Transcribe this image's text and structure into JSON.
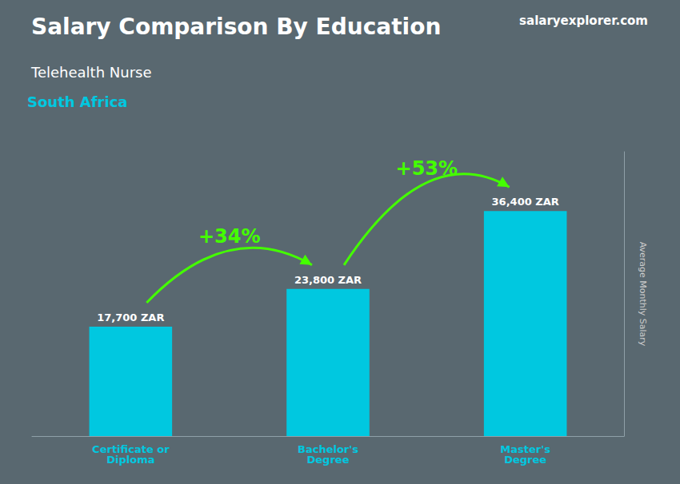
{
  "chart_data": {
    "type": "bar",
    "title": "Salary Comparison By Education",
    "subtitle": "Telehealth Nurse",
    "ylabel": "Average Monthly Salary",
    "categories": [
      "Certificate or\nDiploma",
      "Bachelor's\nDegree",
      "Master's\nDegree"
    ],
    "values": [
      17700,
      23800,
      36400
    ],
    "value_labels": [
      "17,700 ZAR",
      "23,800 ZAR",
      "36,400 ZAR"
    ],
    "color": "#00c8e0",
    "data_labels": true,
    "ylim": [
      0,
      46000
    ],
    "tick_labels": "x",
    "grid": false,
    "annotations": [
      {
        "text": "South Africa",
        "color": "#00c8e0"
      },
      {
        "text": "salaryexplorer.com",
        "color": "#ffffff"
      },
      {
        "text": "+34%",
        "color": "#44ff00",
        "from": "Certificate or\nDiploma",
        "to": "Bachelor's\nDegree"
      },
      {
        "text": "+53%",
        "color": "#44ff00",
        "from": "Bachelor's\nDegree",
        "to": "Master's\nDegree"
      }
    ]
  }
}
